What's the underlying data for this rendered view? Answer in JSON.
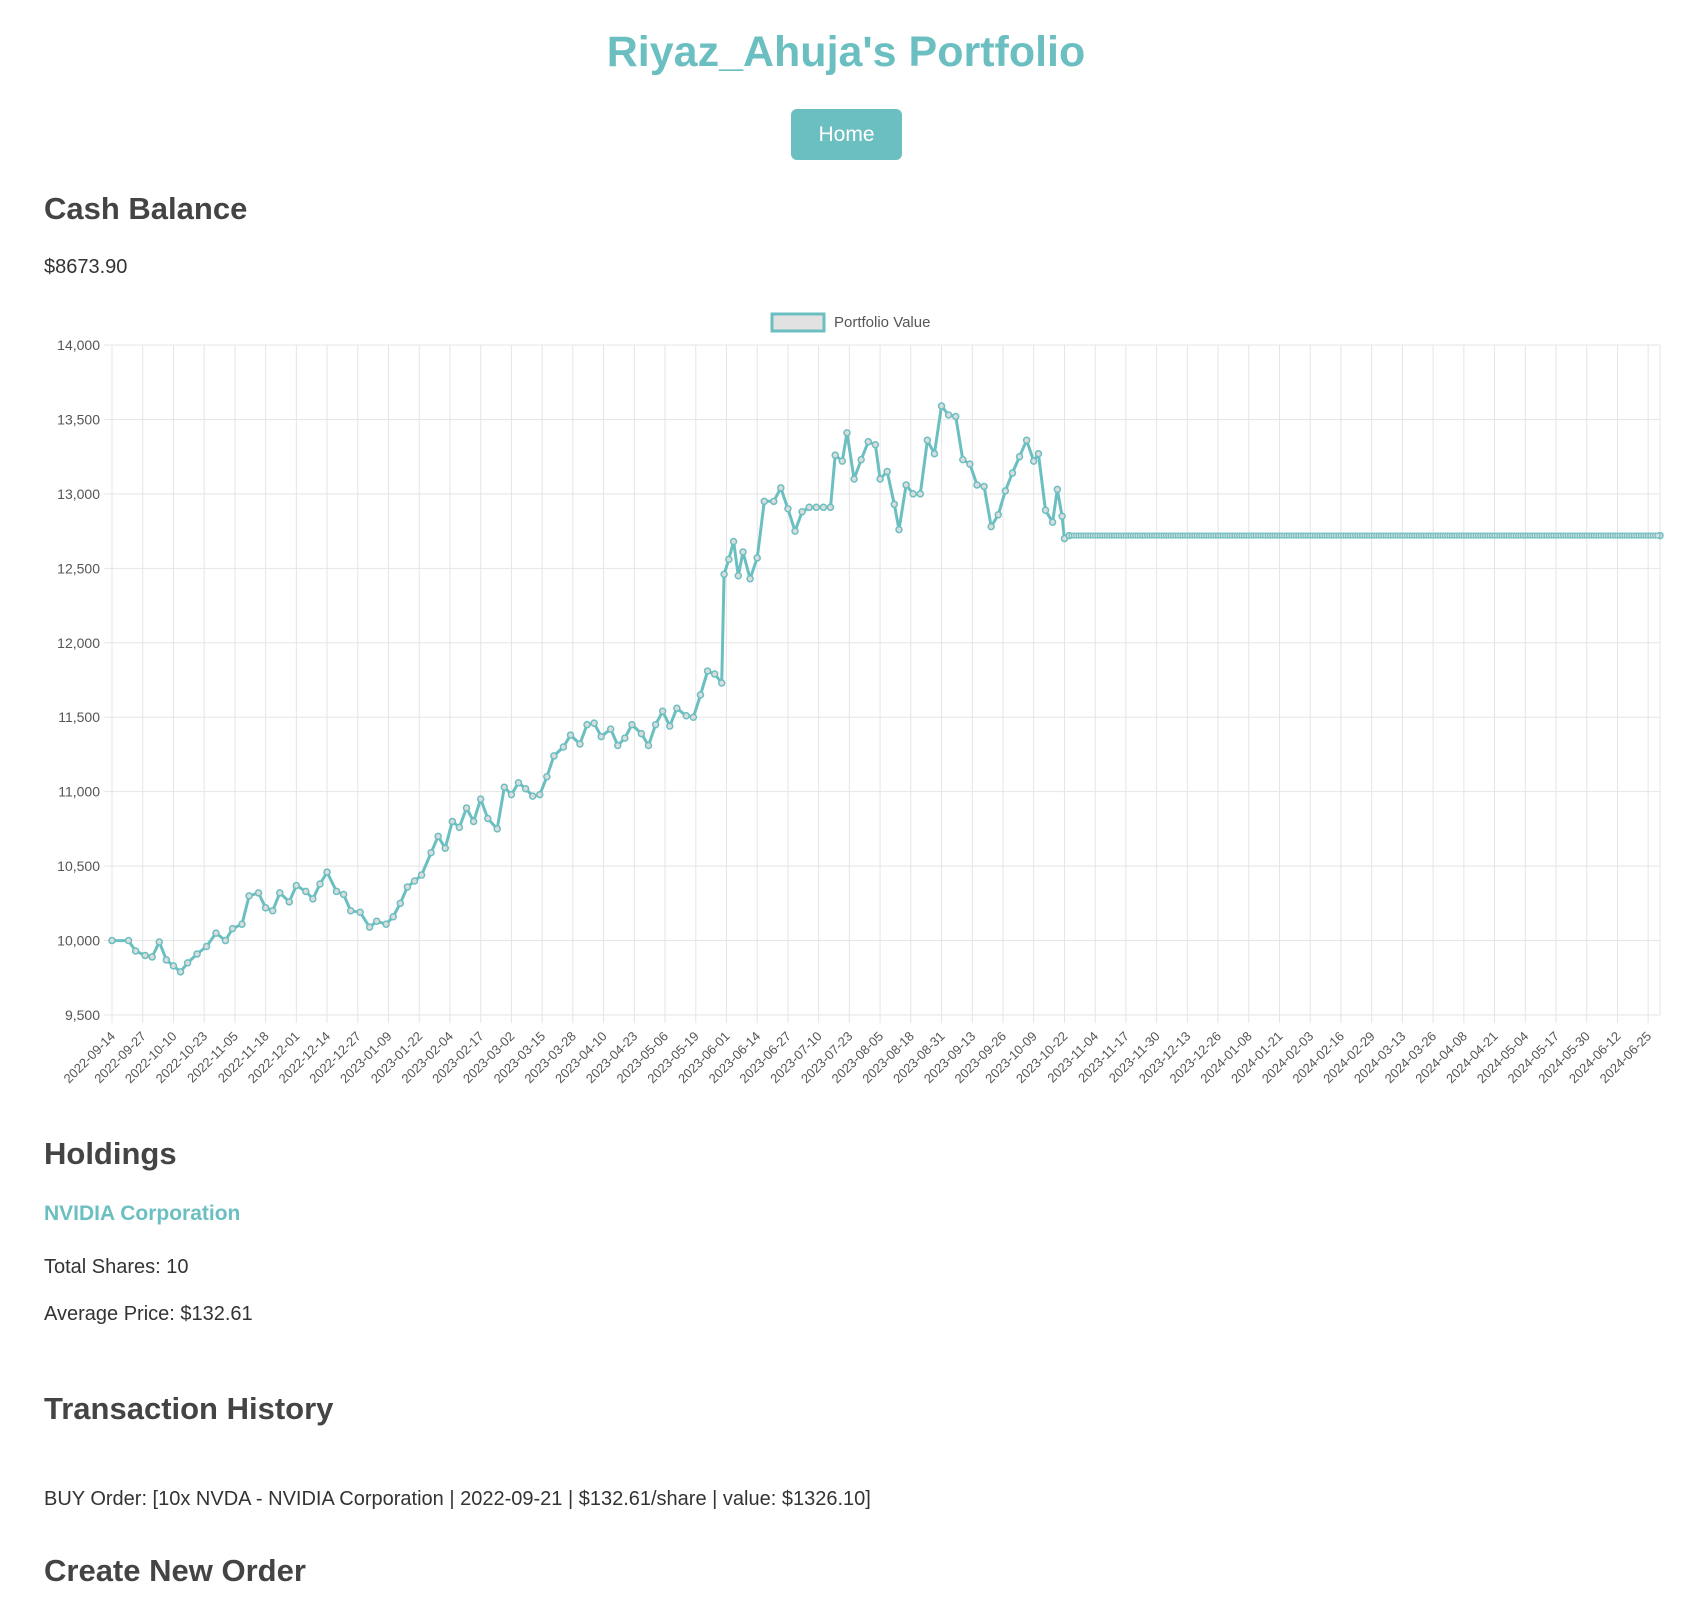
{
  "header": {
    "title": "Riyaz_Ahuja's Portfolio",
    "home_label": "Home"
  },
  "cash": {
    "heading": "Cash Balance",
    "value": "$8673.90"
  },
  "holdings": {
    "heading": "Holdings",
    "items": [
      {
        "name": "NVIDIA Corporation",
        "shares_text": "Total Shares: 10",
        "avg_price_text": "Average Price: $132.61"
      }
    ]
  },
  "transactions": {
    "heading": "Transaction History",
    "items": [
      "BUY Order: [10x NVDA - NVIDIA Corporation | 2022-09-21 | $132.61/share | value: $1326.10]"
    ]
  },
  "new_order": {
    "heading": "Create New Order"
  },
  "colors": {
    "accent": "#6cbfc0",
    "grid": "#e5e5e5",
    "text": "#333333"
  },
  "chart_data": {
    "type": "line",
    "legend": "Portfolio Value",
    "legend_position": "top",
    "ylim": [
      9500,
      14000
    ],
    "yticks": [
      9500,
      10000,
      10500,
      11000,
      11500,
      12000,
      12500,
      13000,
      13500,
      14000
    ],
    "grid": true,
    "x_start": "2022-09-14",
    "x_end": "2024-06-30",
    "xtick_labels": [
      "2022-09-14",
      "2022-09-27",
      "2022-10-10",
      "2022-10-23",
      "2022-11-05",
      "2022-11-18",
      "2022-12-01",
      "2022-12-14",
      "2022-12-27",
      "2023-01-09",
      "2023-01-22",
      "2023-02-04",
      "2023-02-17",
      "2023-03-02",
      "2023-03-15",
      "2023-03-28",
      "2023-04-10",
      "2023-04-23",
      "2023-05-06",
      "2023-05-19",
      "2023-06-01",
      "2023-06-14",
      "2023-06-27",
      "2023-07-10",
      "2023-07-23",
      "2023-08-05",
      "2023-08-18",
      "2023-08-31",
      "2023-09-13",
      "2023-09-26",
      "2023-10-09",
      "2023-10-22",
      "2023-11-04",
      "2023-11-17",
      "2023-11-30",
      "2023-12-13",
      "2023-12-26",
      "2024-01-08",
      "2024-01-21",
      "2024-02-03",
      "2024-02-16",
      "2024-02-29",
      "2024-03-13",
      "2024-03-26",
      "2024-04-08",
      "2024-04-21",
      "2024-05-04",
      "2024-05-17",
      "2024-05-30",
      "2024-06-12",
      "2024-06-25"
    ],
    "series": [
      {
        "name": "Portfolio Value",
        "points": [
          [
            "2022-09-14",
            10000
          ],
          [
            "2022-09-21",
            10000
          ],
          [
            "2022-09-24",
            9930
          ],
          [
            "2022-09-28",
            9900
          ],
          [
            "2022-10-01",
            9890
          ],
          [
            "2022-10-04",
            9990
          ],
          [
            "2022-10-07",
            9870
          ],
          [
            "2022-10-10",
            9830
          ],
          [
            "2022-10-13",
            9790
          ],
          [
            "2022-10-16",
            9850
          ],
          [
            "2022-10-20",
            9910
          ],
          [
            "2022-10-24",
            9960
          ],
          [
            "2022-10-28",
            10050
          ],
          [
            "2022-11-01",
            10000
          ],
          [
            "2022-11-04",
            10080
          ],
          [
            "2022-11-08",
            10110
          ],
          [
            "2022-11-11",
            10300
          ],
          [
            "2022-11-15",
            10320
          ],
          [
            "2022-11-18",
            10220
          ],
          [
            "2022-11-21",
            10200
          ],
          [
            "2022-11-24",
            10320
          ],
          [
            "2022-11-28",
            10260
          ],
          [
            "2022-12-01",
            10370
          ],
          [
            "2022-12-05",
            10330
          ],
          [
            "2022-12-08",
            10280
          ],
          [
            "2022-12-11",
            10380
          ],
          [
            "2022-12-14",
            10460
          ],
          [
            "2022-12-18",
            10330
          ],
          [
            "2022-12-21",
            10310
          ],
          [
            "2022-12-24",
            10200
          ],
          [
            "2022-12-28",
            10190
          ],
          [
            "2023-01-01",
            10090
          ],
          [
            "2023-01-04",
            10130
          ],
          [
            "2023-01-08",
            10110
          ],
          [
            "2023-01-11",
            10160
          ],
          [
            "2023-01-14",
            10250
          ],
          [
            "2023-01-17",
            10360
          ],
          [
            "2023-01-20",
            10400
          ],
          [
            "2023-01-23",
            10440
          ],
          [
            "2023-01-27",
            10590
          ],
          [
            "2023-01-30",
            10700
          ],
          [
            "2023-02-02",
            10620
          ],
          [
            "2023-02-05",
            10800
          ],
          [
            "2023-02-08",
            10760
          ],
          [
            "2023-02-11",
            10890
          ],
          [
            "2023-02-14",
            10800
          ],
          [
            "2023-02-17",
            10950
          ],
          [
            "2023-02-20",
            10820
          ],
          [
            "2023-02-24",
            10750
          ],
          [
            "2023-02-27",
            11030
          ],
          [
            "2023-03-02",
            10980
          ],
          [
            "2023-03-05",
            11060
          ],
          [
            "2023-03-08",
            11020
          ],
          [
            "2023-03-11",
            10970
          ],
          [
            "2023-03-14",
            10980
          ],
          [
            "2023-03-17",
            11100
          ],
          [
            "2023-03-20",
            11240
          ],
          [
            "2023-03-24",
            11300
          ],
          [
            "2023-03-27",
            11380
          ],
          [
            "2023-03-31",
            11320
          ],
          [
            "2023-04-03",
            11450
          ],
          [
            "2023-04-06",
            11460
          ],
          [
            "2023-04-09",
            11370
          ],
          [
            "2023-04-13",
            11420
          ],
          [
            "2023-04-16",
            11310
          ],
          [
            "2023-04-19",
            11360
          ],
          [
            "2023-04-22",
            11450
          ],
          [
            "2023-04-26",
            11390
          ],
          [
            "2023-04-29",
            11310
          ],
          [
            "2023-05-02",
            11450
          ],
          [
            "2023-05-05",
            11540
          ],
          [
            "2023-05-08",
            11440
          ],
          [
            "2023-05-11",
            11560
          ],
          [
            "2023-05-15",
            11510
          ],
          [
            "2023-05-18",
            11500
          ],
          [
            "2023-05-21",
            11650
          ],
          [
            "2023-05-24",
            11810
          ],
          [
            "2023-05-27",
            11790
          ],
          [
            "2023-05-30",
            11730
          ],
          [
            "2023-05-31",
            12460
          ],
          [
            "2023-06-02",
            12560
          ],
          [
            "2023-06-04",
            12680
          ],
          [
            "2023-06-06",
            12450
          ],
          [
            "2023-06-08",
            12610
          ],
          [
            "2023-06-11",
            12430
          ],
          [
            "2023-06-14",
            12570
          ],
          [
            "2023-06-17",
            12950
          ],
          [
            "2023-06-21",
            12950
          ],
          [
            "2023-06-24",
            13040
          ],
          [
            "2023-06-27",
            12900
          ],
          [
            "2023-06-30",
            12750
          ],
          [
            "2023-07-03",
            12880
          ],
          [
            "2023-07-06",
            12910
          ],
          [
            "2023-07-09",
            12910
          ],
          [
            "2023-07-12",
            12910
          ],
          [
            "2023-07-15",
            12910
          ],
          [
            "2023-07-17",
            13260
          ],
          [
            "2023-07-20",
            13220
          ],
          [
            "2023-07-22",
            13410
          ],
          [
            "2023-07-25",
            13100
          ],
          [
            "2023-07-28",
            13230
          ],
          [
            "2023-07-31",
            13350
          ],
          [
            "2023-08-03",
            13330
          ],
          [
            "2023-08-05",
            13100
          ],
          [
            "2023-08-08",
            13150
          ],
          [
            "2023-08-11",
            12930
          ],
          [
            "2023-08-13",
            12760
          ],
          [
            "2023-08-16",
            13060
          ],
          [
            "2023-08-19",
            13000
          ],
          [
            "2023-08-22",
            13000
          ],
          [
            "2023-08-25",
            13360
          ],
          [
            "2023-08-28",
            13270
          ],
          [
            "2023-08-31",
            13590
          ],
          [
            "2023-09-03",
            13530
          ],
          [
            "2023-09-06",
            13520
          ],
          [
            "2023-09-09",
            13230
          ],
          [
            "2023-09-12",
            13200
          ],
          [
            "2023-09-15",
            13060
          ],
          [
            "2023-09-18",
            13050
          ],
          [
            "2023-09-21",
            12780
          ],
          [
            "2023-09-24",
            12860
          ],
          [
            "2023-09-27",
            13020
          ],
          [
            "2023-09-30",
            13140
          ],
          [
            "2023-10-03",
            13250
          ],
          [
            "2023-10-06",
            13360
          ],
          [
            "2023-10-09",
            13220
          ],
          [
            "2023-10-11",
            13270
          ],
          [
            "2023-10-14",
            12890
          ],
          [
            "2023-10-17",
            12810
          ],
          [
            "2023-10-19",
            13030
          ],
          [
            "2023-10-21",
            12850
          ],
          [
            "2023-10-22",
            12700
          ],
          [
            "2023-10-24",
            12720
          ],
          [
            "2024-06-30",
            12720
          ]
        ]
      }
    ]
  }
}
